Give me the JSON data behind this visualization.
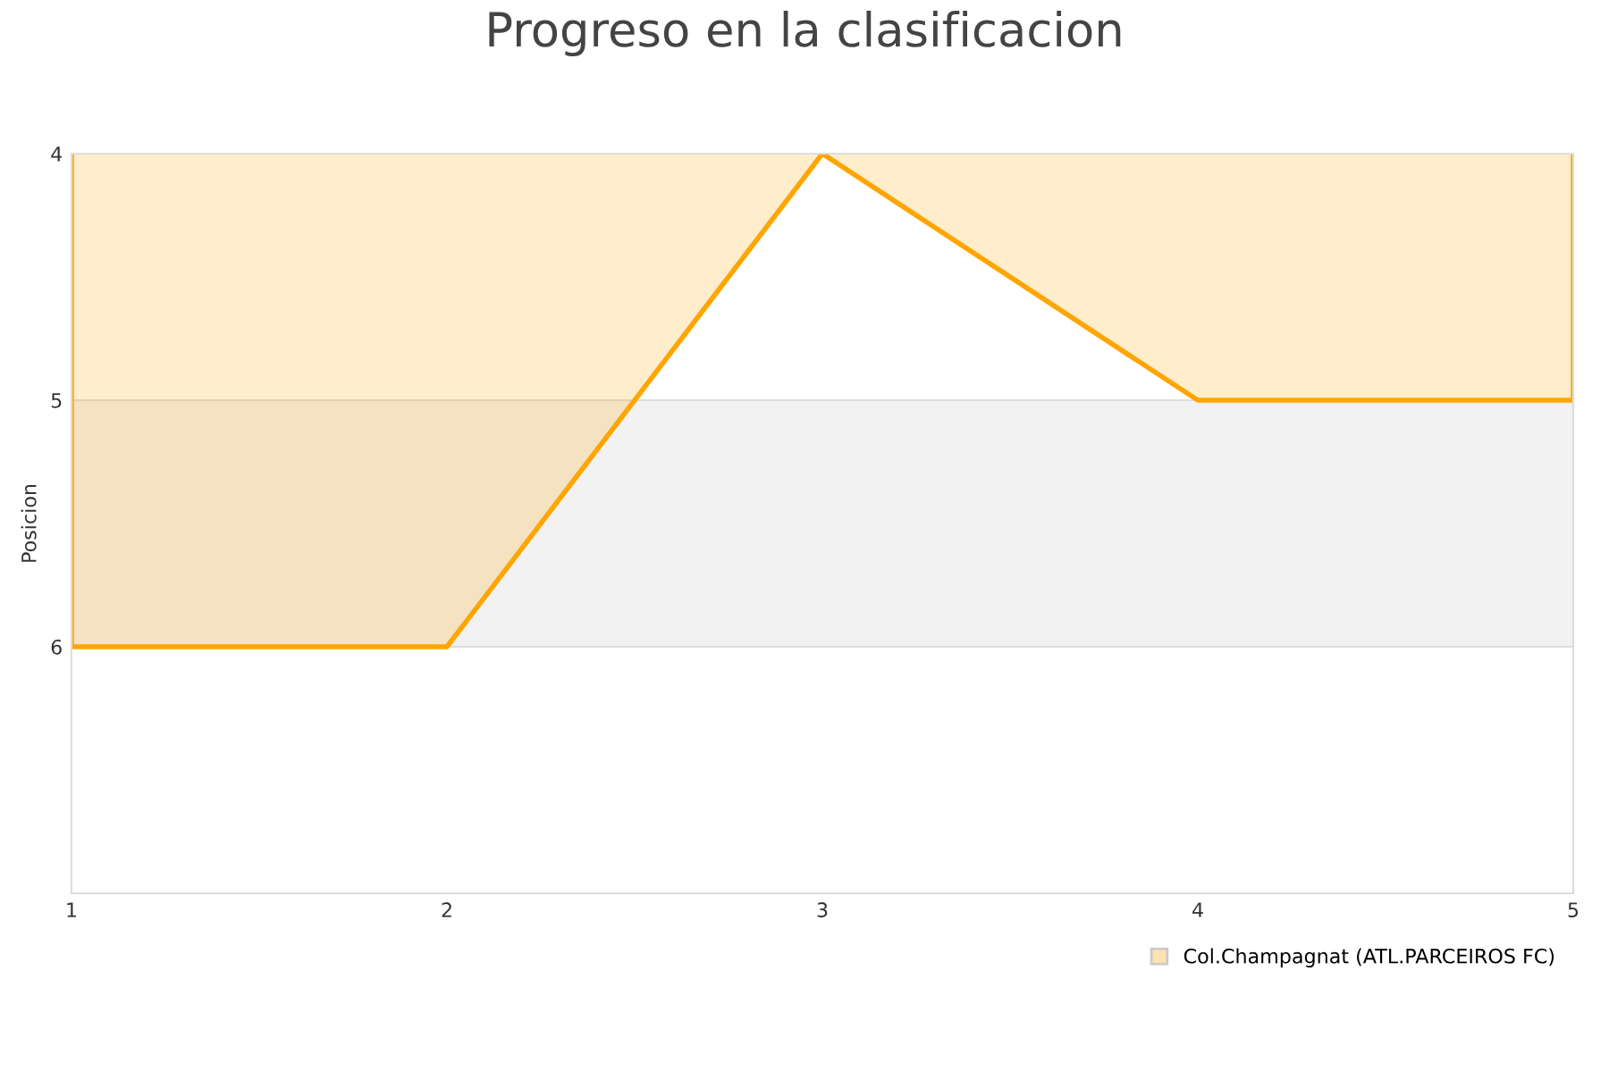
{
  "chart_data": {
    "type": "area",
    "title": "Progreso en la clasificacion",
    "ylabel": "Posicion",
    "x": [
      1,
      2,
      3,
      4,
      5
    ],
    "xlim": [
      1,
      5
    ],
    "xticks": [
      1,
      2,
      3,
      4,
      5
    ],
    "ylim": [
      7,
      4
    ],
    "yticks": [
      4,
      5,
      6
    ],
    "series": [
      {
        "name": "Col.Champagnat (ATL.PARCEIROS FC)",
        "color": "#ffa500",
        "values": [
          6,
          6,
          4,
          5,
          5
        ]
      }
    ],
    "bands": [
      {
        "axis": "y",
        "from": 5,
        "to": 6,
        "color": "#f2f2f2"
      }
    ],
    "grid": "y",
    "legend": "bottom right"
  }
}
